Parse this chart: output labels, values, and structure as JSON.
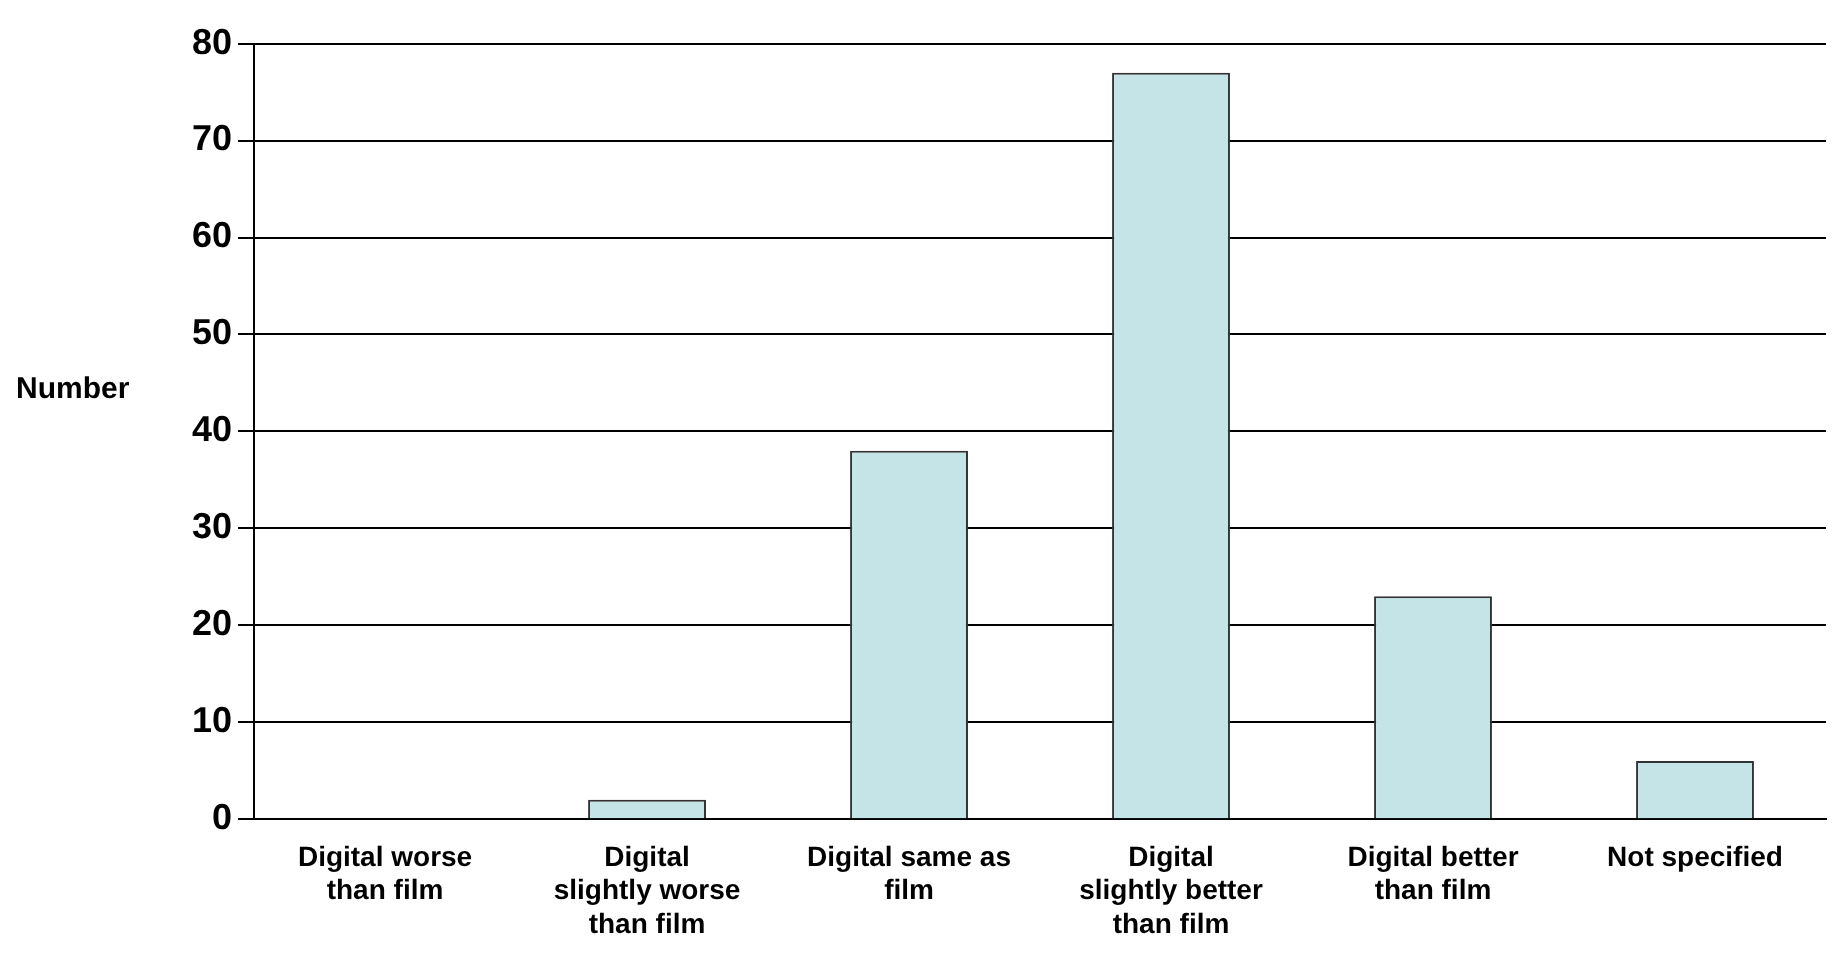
{
  "chart_data": {
    "type": "bar",
    "ylabel": "Number",
    "categories": [
      "Digital worse than film",
      "Digital slightly worse than film",
      "Digital same as film",
      "Digital slightly better than film",
      "Digital better than film",
      "Not specified"
    ],
    "values": [
      0,
      2,
      38,
      77,
      23,
      6
    ],
    "color": "#c5e4e8",
    "ylim": [
      0,
      80
    ],
    "yticks": [
      0,
      10,
      20,
      30,
      40,
      50,
      60,
      70,
      80
    ],
    "grid": "y"
  }
}
